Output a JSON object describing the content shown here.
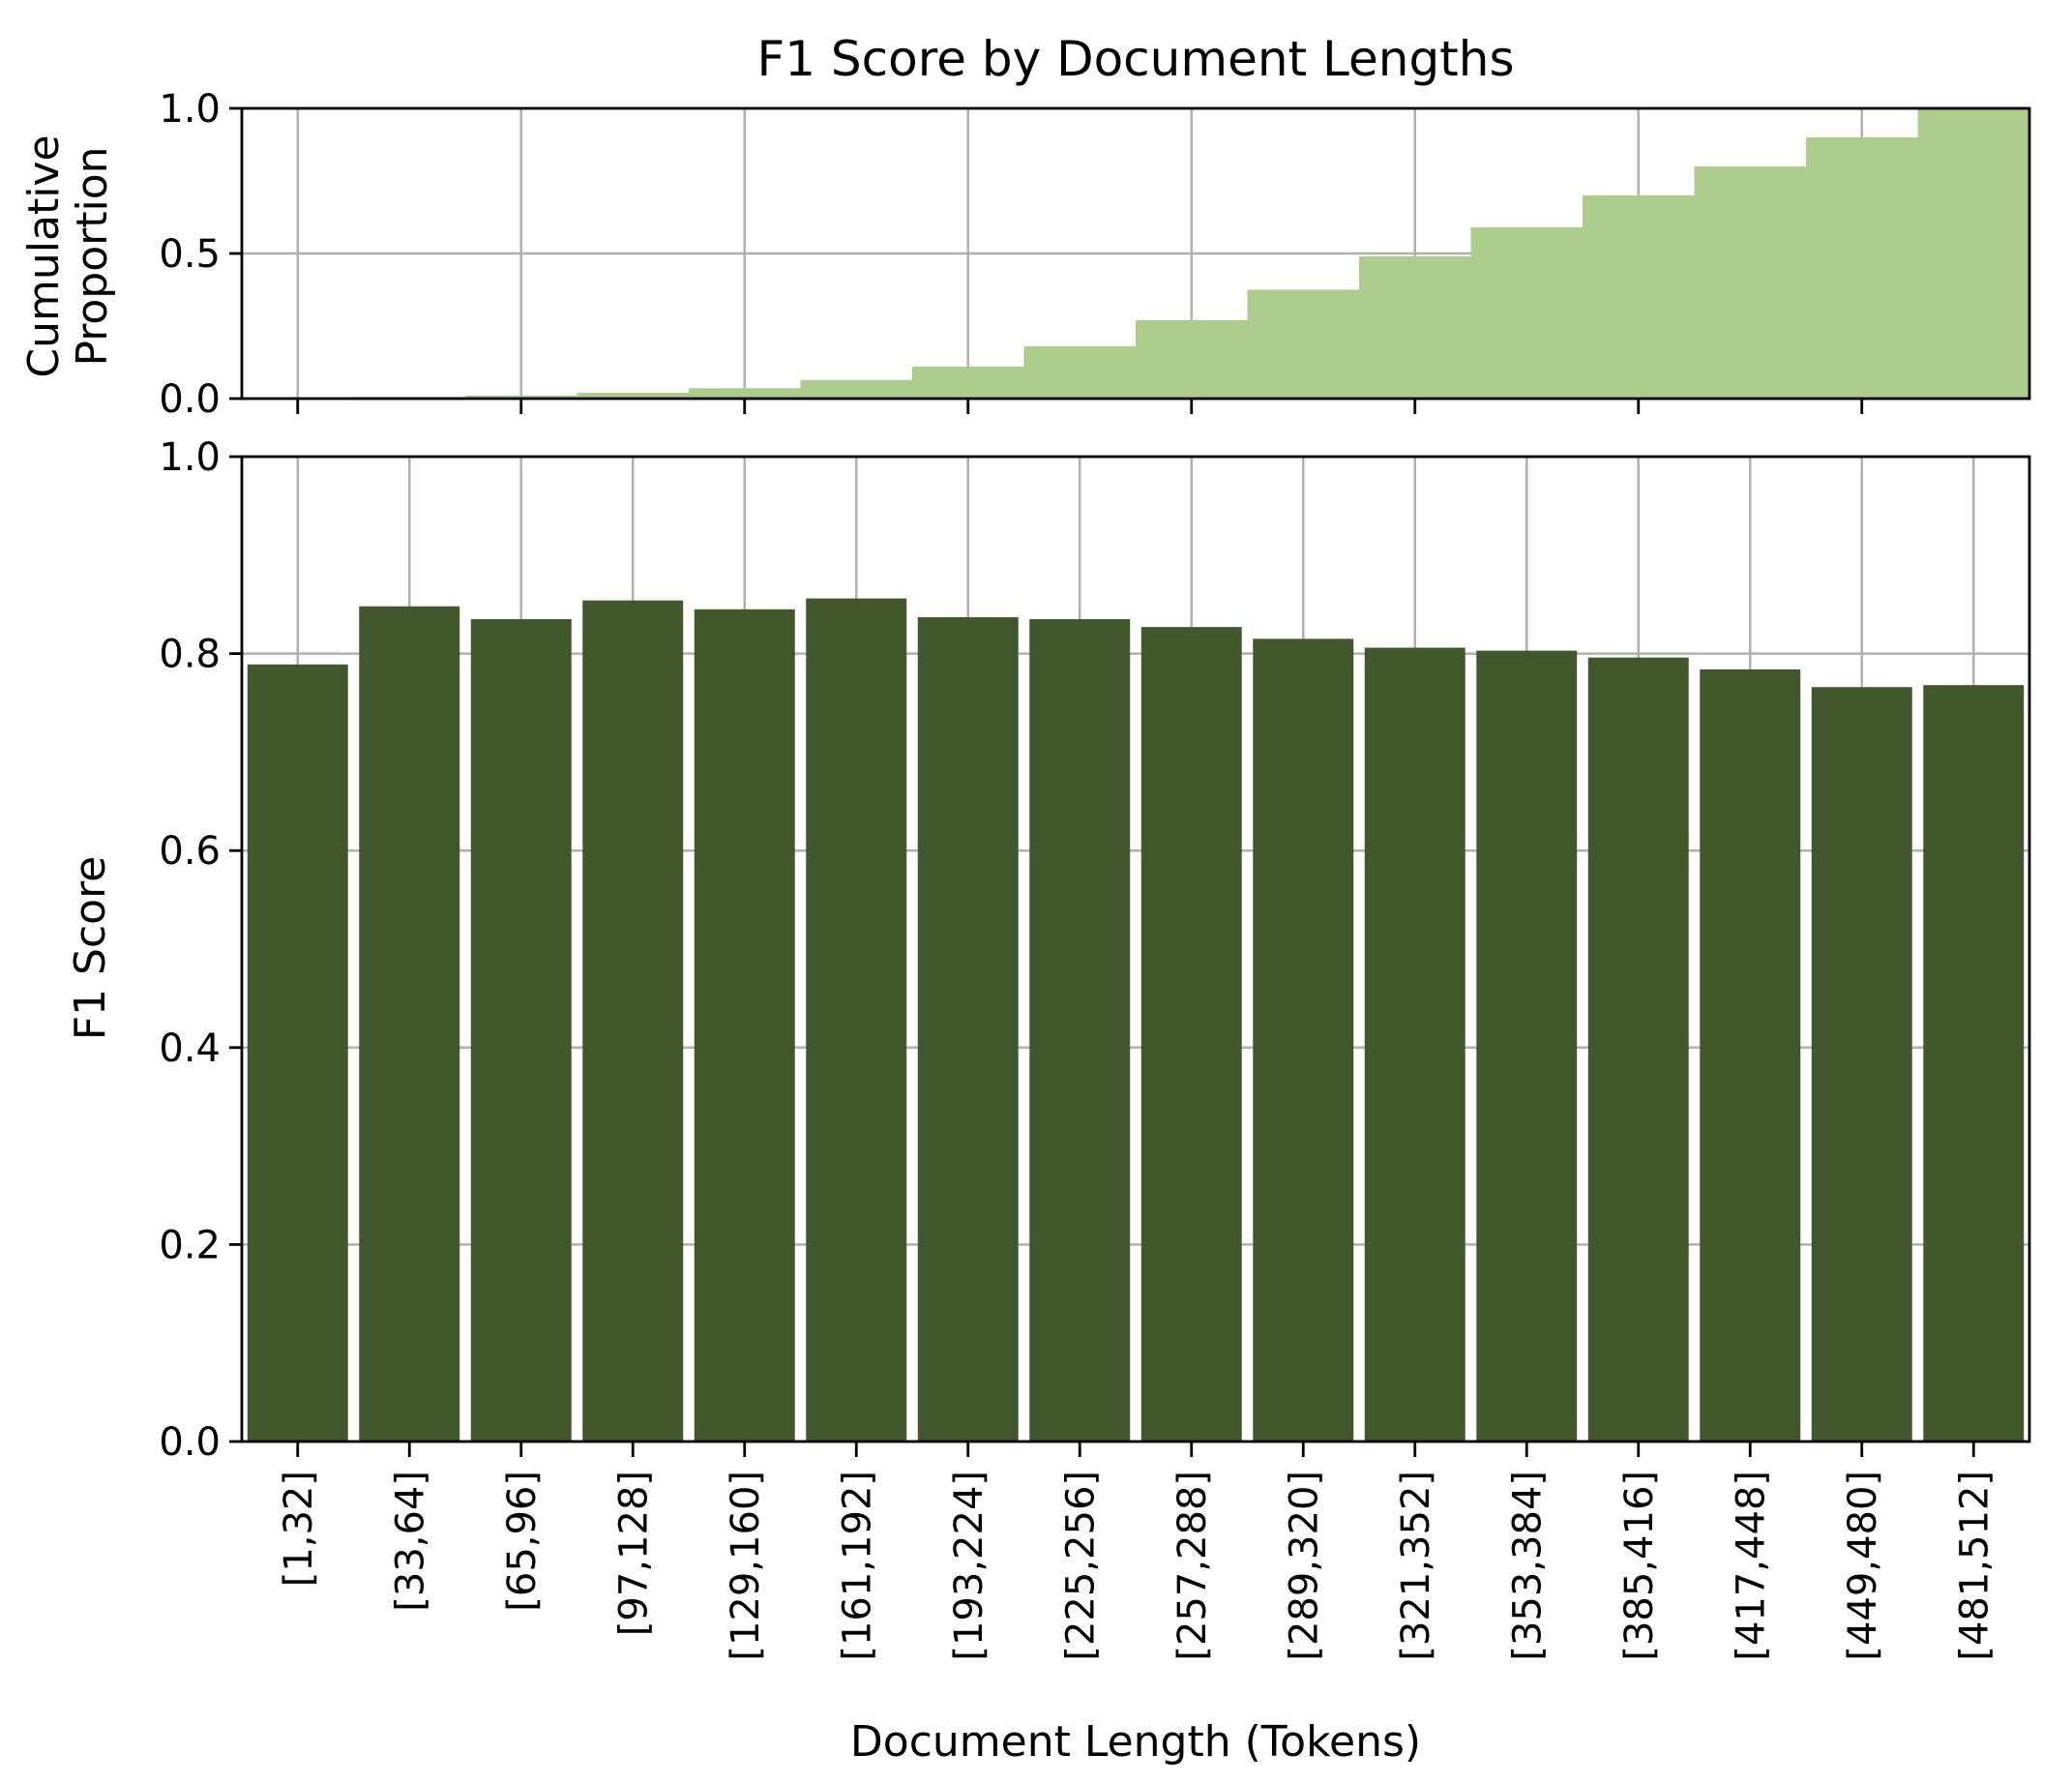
{
  "chart_data": [
    {
      "type": "area",
      "panel": "top",
      "title": "F1 Score by Document Lengths",
      "ylabel": "Cumulative Proportion",
      "ylabel_lines": [
        "Cumulative",
        "Proportion"
      ],
      "ylim": [
        0,
        1.0
      ],
      "yticks": [
        0.0,
        0.5,
        1.0
      ],
      "ytick_labels": [
        "0.0",
        "0.5",
        "1.0"
      ],
      "grid": true,
      "step": true,
      "categories": [
        "[1,32]",
        "[33,64]",
        "[65,96]",
        "[97,128]",
        "[129,160]",
        "[161,192]",
        "[193,224]",
        "[225,256]",
        "[257,288]",
        "[289,320]",
        "[321,352]",
        "[353,384]",
        "[385,416]",
        "[417,448]",
        "[449,480]",
        "[481,512]"
      ],
      "values": [
        0.003,
        0.006,
        0.011,
        0.02,
        0.036,
        0.064,
        0.11,
        0.18,
        0.27,
        0.375,
        0.49,
        0.59,
        0.7,
        0.8,
        0.9,
        1.0
      ],
      "color": "#acce8a"
    },
    {
      "type": "bar",
      "panel": "bottom",
      "xlabel": "Document Length (Tokens)",
      "ylabel": "F1 Score",
      "ylim": [
        0,
        1.0
      ],
      "yticks": [
        0.0,
        0.2,
        0.4,
        0.6,
        0.8,
        1.0
      ],
      "ytick_labels": [
        "0.0",
        "0.2",
        "0.4",
        "0.6",
        "0.8",
        "1.0"
      ],
      "grid": true,
      "categories": [
        "[1,32]",
        "[33,64]",
        "[65,96]",
        "[97,128]",
        "[129,160]",
        "[161,192]",
        "[193,224]",
        "[225,256]",
        "[257,288]",
        "[289,320]",
        "[321,352]",
        "[353,384]",
        "[385,416]",
        "[417,448]",
        "[449,480]",
        "[481,512]"
      ],
      "values": [
        0.789,
        0.848,
        0.835,
        0.854,
        0.845,
        0.856,
        0.837,
        0.835,
        0.827,
        0.815,
        0.806,
        0.803,
        0.796,
        0.784,
        0.766,
        0.768
      ],
      "color": "#41572c"
    }
  ]
}
